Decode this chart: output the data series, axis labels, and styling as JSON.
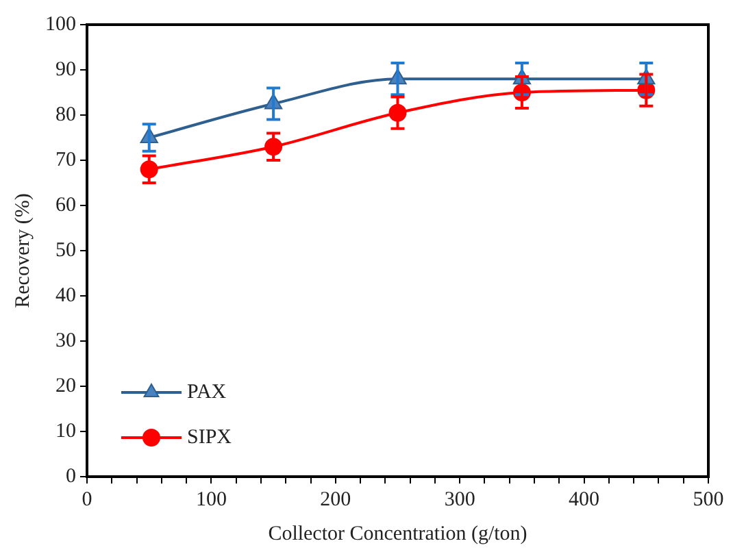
{
  "chart_data": {
    "type": "line",
    "xlabel": "Collector Concentration (g/ton)",
    "ylabel": "Recovery (%)",
    "x": [
      50,
      150,
      250,
      350,
      450
    ],
    "series": [
      {
        "name": "PAX",
        "color": "#2e5f8f",
        "marker": "triangle",
        "values": [
          75,
          82.5,
          88,
          88,
          88
        ],
        "errors": [
          3,
          3.5,
          3.5,
          3.5,
          3.5
        ]
      },
      {
        "name": "SIPX",
        "color": "#ff0000",
        "marker": "circle",
        "values": [
          68,
          73,
          80.5,
          85,
          85.5
        ],
        "errors": [
          3,
          3,
          3.5,
          3.5,
          3.5
        ]
      }
    ],
    "xlim": [
      0,
      500
    ],
    "xticks": [
      0,
      {
        "value": 20,
        "label": null
      },
      {
        "value": 40,
        "label": null
      },
      {
        "value": 60,
        "label": null
      },
      {
        "value": 80,
        "label": null
      },
      100,
      {
        "value": 120,
        "label": null
      },
      {
        "value": 140,
        "label": null
      },
      {
        "value": 160,
        "label": null
      },
      {
        "value": 180,
        "label": null
      },
      200,
      {
        "value": 220,
        "label": null
      },
      {
        "value": 240,
        "label": null
      },
      {
        "value": 260,
        "label": null
      },
      {
        "value": 280,
        "label": null
      },
      300,
      {
        "value": 320,
        "label": null
      },
      {
        "value": 340,
        "label": null
      },
      {
        "value": 360,
        "label": null
      },
      {
        "value": 380,
        "label": null
      },
      400,
      {
        "value": 420,
        "label": null
      },
      {
        "value": 440,
        "label": null
      },
      {
        "value": 460,
        "label": null
      },
      {
        "value": 480,
        "label": null
      },
      500
    ],
    "ylim": [
      0,
      100
    ],
    "yticks": [
      0,
      10,
      20,
      30,
      40,
      50,
      60,
      70,
      80,
      90,
      100
    ],
    "grid": false,
    "legend": "bottom left"
  }
}
